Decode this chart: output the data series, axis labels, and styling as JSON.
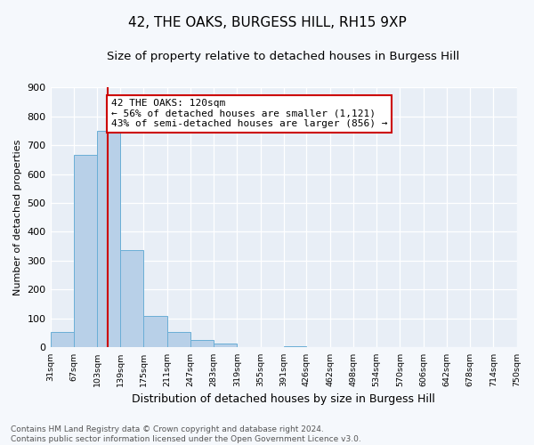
{
  "title": "42, THE OAKS, BURGESS HILL, RH15 9XP",
  "subtitle": "Size of property relative to detached houses in Burgess Hill",
  "xlabel": "Distribution of detached houses by size in Burgess Hill",
  "ylabel": "Number of detached properties",
  "bin_edges": [
    31,
    67,
    103,
    139,
    175,
    211,
    247,
    283,
    319,
    355,
    391,
    426,
    462,
    498,
    534,
    570,
    606,
    642,
    678,
    714,
    750
  ],
  "bar_heights": [
    55,
    665,
    750,
    338,
    110,
    53,
    27,
    15,
    0,
    0,
    5,
    0,
    0,
    0,
    0,
    0,
    0,
    0,
    0,
    0
  ],
  "bar_color": "#b8d0e8",
  "bar_edge_color": "#6aaed6",
  "property_value": 120,
  "vline_color": "#cc0000",
  "annotation_title": "42 THE OAKS: 120sqm",
  "annotation_line1": "← 56% of detached houses are smaller (1,121)",
  "annotation_line2": "43% of semi-detached houses are larger (856) →",
  "annotation_box_facecolor": "#ffffff",
  "annotation_box_edgecolor": "#cc0000",
  "ylim": [
    0,
    900
  ],
  "yticks": [
    0,
    100,
    200,
    300,
    400,
    500,
    600,
    700,
    800,
    900
  ],
  "tick_labels": [
    "31sqm",
    "67sqm",
    "103sqm",
    "139sqm",
    "175sqm",
    "211sqm",
    "247sqm",
    "283sqm",
    "319sqm",
    "355sqm",
    "391sqm",
    "426sqm",
    "462sqm",
    "498sqm",
    "534sqm",
    "570sqm",
    "606sqm",
    "642sqm",
    "678sqm",
    "714sqm",
    "750sqm"
  ],
  "footer_line1": "Contains HM Land Registry data © Crown copyright and database right 2024.",
  "footer_line2": "Contains public sector information licensed under the Open Government Licence v3.0.",
  "plot_bg_color": "#e8eef6",
  "fig_bg_color": "#f5f8fc",
  "grid_color": "#ffffff",
  "title_fontsize": 11,
  "subtitle_fontsize": 9.5,
  "annotation_fontsize": 8,
  "ylabel_fontsize": 8,
  "xlabel_fontsize": 9,
  "tick_fontsize": 6.8,
  "ytick_fontsize": 8,
  "footer_fontsize": 6.5
}
